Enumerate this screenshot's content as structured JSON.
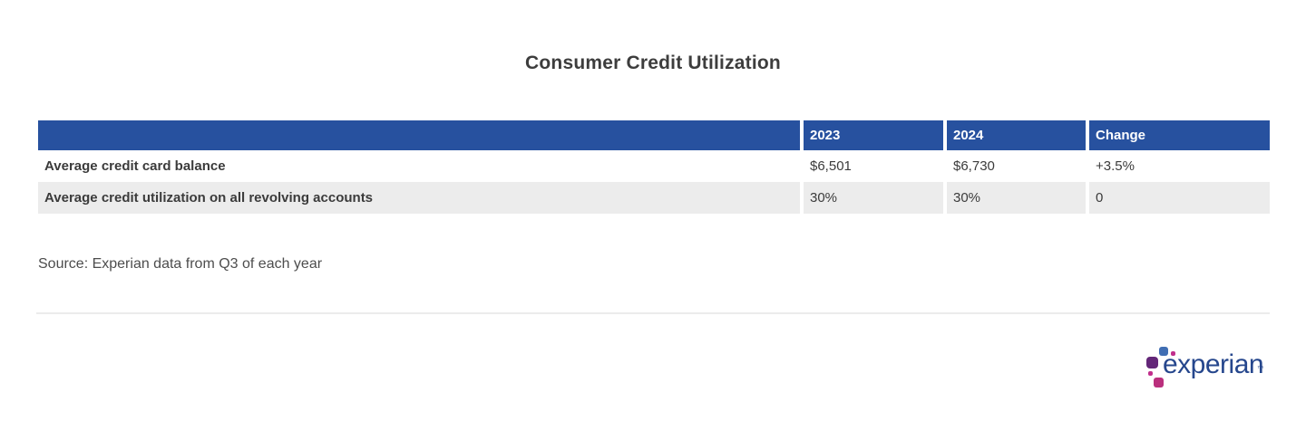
{
  "title": "Consumer Credit Utilization",
  "chart_data": {
    "type": "table",
    "title": "Consumer Credit Utilization",
    "columns": [
      "",
      "2023",
      "2024",
      "Change"
    ],
    "rows": [
      [
        "Average credit card balance",
        "$6,501",
        "$6,730",
        "+3.5%"
      ],
      [
        "Average credit utilization on all revolving accounts",
        "30%",
        "30%",
        "0"
      ]
    ],
    "source": "Source: Experian data from Q3 of each year"
  },
  "table": {
    "header": {
      "label": "",
      "col_2023": "2023",
      "col_2024": "2024",
      "col_change": "Change"
    },
    "rows": [
      {
        "label": "Average credit card balance",
        "y2023": "$6,501",
        "y2024": "$6,730",
        "change": "+3.5%"
      },
      {
        "label": "Average credit utilization on all revolving accounts",
        "y2023": "30%",
        "y2024": "30%",
        "change": "0"
      }
    ]
  },
  "source_note": "Source: Experian data from Q3 of each year",
  "logo": {
    "wordmark": "experian",
    "trademark": "™"
  },
  "colors": {
    "header_bg": "#27519F",
    "header_text": "#FFFFFF",
    "row_alt_bg": "#ECECEC",
    "body_text": "#3B3B3B",
    "title_text": "#3D3D3D",
    "source_text": "#4D4D4D",
    "divider": "#ECECEC",
    "experian_blue": "#26478D",
    "logo_blue": "#406EB3",
    "logo_purple": "#632678",
    "logo_magenta": "#BA2F7D"
  }
}
